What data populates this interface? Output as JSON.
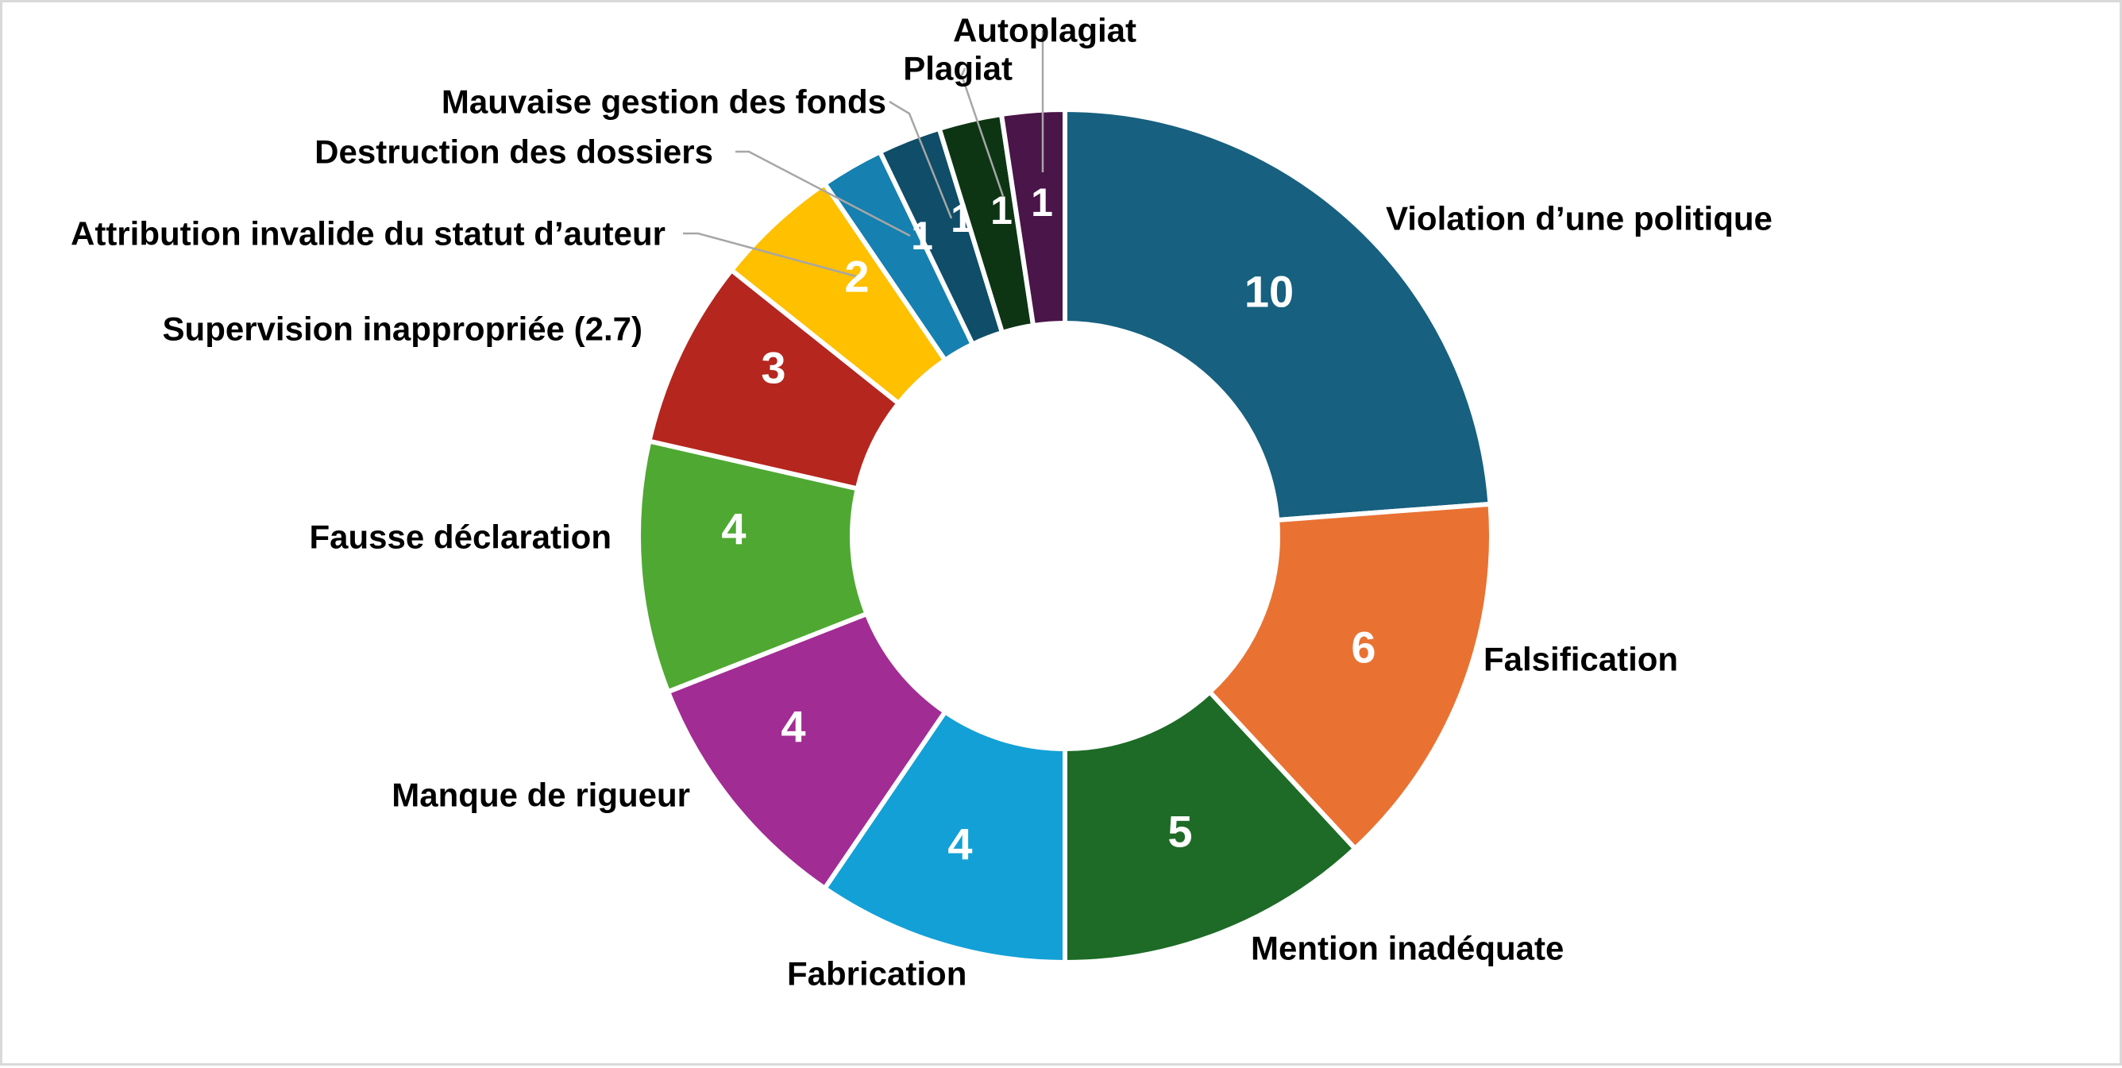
{
  "chart_data": {
    "type": "pie",
    "variant": "donut",
    "title": "",
    "legend": "none",
    "slices": [
      {
        "label": "Violation d’une politique",
        "value": 10,
        "color": "#17607f"
      },
      {
        "label": "Falsification",
        "value": 6,
        "color": "#e97233"
      },
      {
        "label": "Mention inadéquate",
        "value": 5,
        "color": "#1d6b26"
      },
      {
        "label": "Fabrication",
        "value": 4,
        "color": "#13a0d6"
      },
      {
        "label": "Manque de rigueur",
        "value": 4,
        "color": "#a12c93"
      },
      {
        "label": "Fausse déclaration",
        "value": 4,
        "color": "#4fa832"
      },
      {
        "label": "Supervision inappropriée (2.7)",
        "value": 3,
        "color": "#b5261f"
      },
      {
        "label": "Attribution invalide du statut d’auteur",
        "value": 2,
        "color": "#ffc000"
      },
      {
        "label": "Destruction des dossiers",
        "value": 1,
        "color": "#1680b0"
      },
      {
        "label": "Mauvaise gestion des fonds",
        "value": 1,
        "color": "#0f4d68"
      },
      {
        "label": "Plagiat",
        "value": 1,
        "color": "#0d3514"
      },
      {
        "label": "Autoplagiat",
        "value": 1,
        "color": "#4a1548"
      }
    ]
  }
}
